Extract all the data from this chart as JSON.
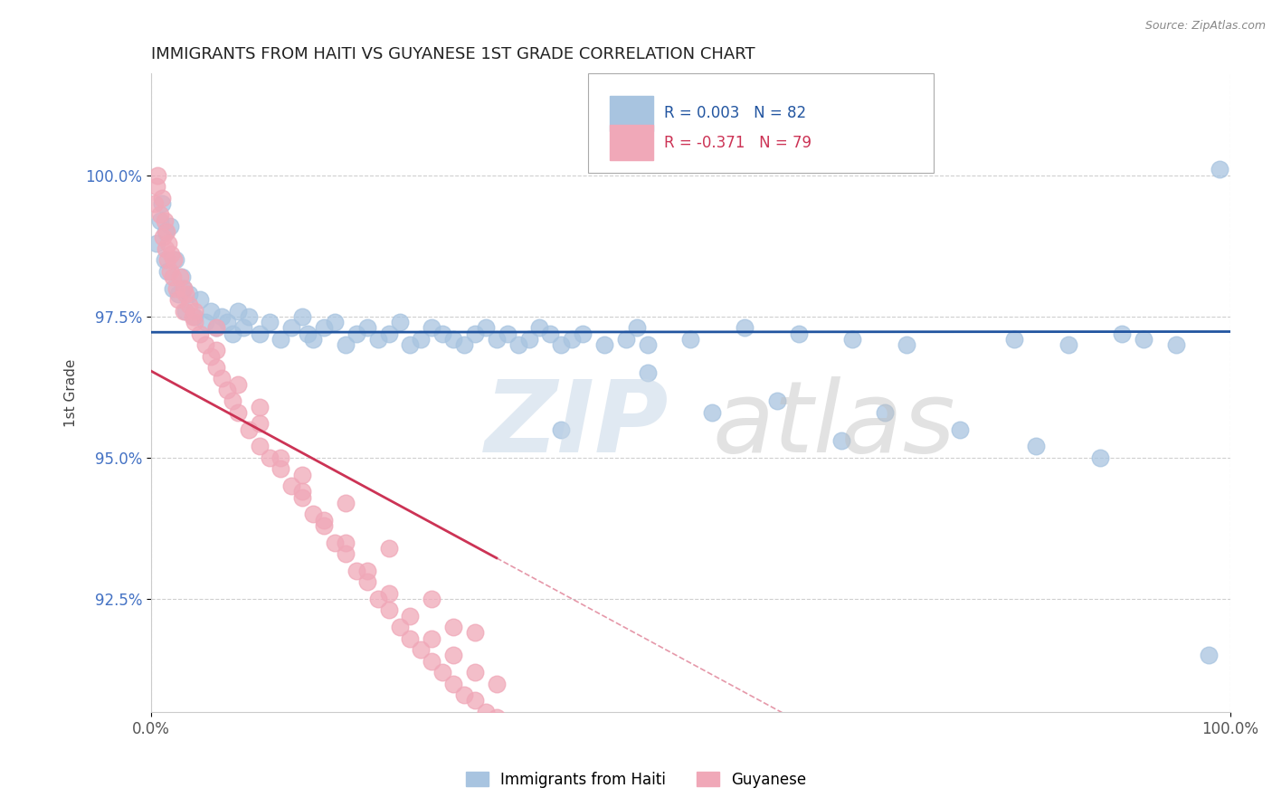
{
  "title": "IMMIGRANTS FROM HAITI VS GUYANESE 1ST GRADE CORRELATION CHART",
  "source_text": "Source: ZipAtlas.com",
  "ylabel": "1st Grade",
  "legend_label_blue": "Immigrants from Haiti",
  "legend_label_pink": "Guyanese",
  "r_blue": 0.003,
  "n_blue": 82,
  "r_pink": -0.371,
  "n_pink": 79,
  "color_blue": "#a8c4e0",
  "color_pink": "#f0a8b8",
  "line_color_blue": "#2255a0",
  "line_color_pink": "#cc3355",
  "xlim": [
    0.0,
    100.0
  ],
  "ylim": [
    90.5,
    101.8
  ],
  "yticks": [
    92.5,
    95.0,
    97.5,
    100.0
  ],
  "ytick_labels": [
    "92.5%",
    "95.0%",
    "97.5%",
    "100.0%"
  ],
  "xtick_labels": [
    "0.0%",
    "100.0%"
  ],
  "watermark_zip": "ZIP",
  "watermark_atlas": "atlas",
  "blue_x": [
    0.5,
    0.8,
    1.0,
    1.2,
    1.3,
    1.5,
    1.7,
    2.0,
    2.2,
    2.5,
    2.8,
    3.0,
    3.2,
    3.5,
    4.0,
    4.5,
    5.0,
    5.5,
    6.0,
    6.5,
    7.0,
    7.5,
    8.0,
    8.5,
    9.0,
    10.0,
    11.0,
    12.0,
    13.0,
    14.0,
    14.5,
    15.0,
    16.0,
    17.0,
    18.0,
    19.0,
    20.0,
    21.0,
    22.0,
    23.0,
    24.0,
    25.0,
    26.0,
    27.0,
    28.0,
    29.0,
    30.0,
    31.0,
    32.0,
    33.0,
    34.0,
    35.0,
    36.0,
    37.0,
    38.0,
    39.0,
    40.0,
    42.0,
    44.0,
    46.0,
    50.0,
    55.0,
    60.0,
    65.0,
    70.0,
    80.0,
    85.0,
    90.0,
    92.0,
    95.0,
    98.0,
    38.0,
    46.0,
    52.0,
    58.0,
    64.0,
    68.0,
    75.0,
    82.0,
    88.0,
    45.0,
    99.0
  ],
  "blue_y": [
    98.8,
    99.2,
    99.5,
    98.5,
    99.0,
    98.3,
    99.1,
    98.0,
    98.5,
    97.9,
    98.2,
    98.0,
    97.6,
    97.9,
    97.5,
    97.8,
    97.4,
    97.6,
    97.3,
    97.5,
    97.4,
    97.2,
    97.6,
    97.3,
    97.5,
    97.2,
    97.4,
    97.1,
    97.3,
    97.5,
    97.2,
    97.1,
    97.3,
    97.4,
    97.0,
    97.2,
    97.3,
    97.1,
    97.2,
    97.4,
    97.0,
    97.1,
    97.3,
    97.2,
    97.1,
    97.0,
    97.2,
    97.3,
    97.1,
    97.2,
    97.0,
    97.1,
    97.3,
    97.2,
    97.0,
    97.1,
    97.2,
    97.0,
    97.1,
    97.0,
    97.1,
    97.3,
    97.2,
    97.1,
    97.0,
    97.1,
    97.0,
    97.2,
    97.1,
    97.0,
    91.5,
    95.5,
    96.5,
    95.8,
    96.0,
    95.3,
    95.8,
    95.5,
    95.2,
    95.0,
    97.3,
    100.1
  ],
  "pink_x": [
    0.3,
    0.5,
    0.6,
    0.8,
    1.0,
    1.1,
    1.2,
    1.3,
    1.4,
    1.5,
    1.6,
    1.7,
    1.8,
    2.0,
    2.1,
    2.3,
    2.5,
    2.7,
    3.0,
    3.2,
    3.5,
    3.8,
    4.0,
    4.5,
    5.0,
    5.5,
    6.0,
    6.5,
    7.0,
    7.5,
    8.0,
    9.0,
    10.0,
    11.0,
    12.0,
    13.0,
    14.0,
    15.0,
    16.0,
    17.0,
    18.0,
    19.0,
    20.0,
    21.0,
    22.0,
    23.0,
    24.0,
    25.0,
    26.0,
    27.0,
    28.0,
    29.0,
    30.0,
    31.0,
    32.0,
    3.0,
    4.0,
    6.0,
    8.0,
    10.0,
    12.0,
    14.0,
    16.0,
    18.0,
    20.0,
    22.0,
    24.0,
    26.0,
    28.0,
    30.0,
    32.0,
    6.0,
    10.0,
    18.0,
    22.0,
    28.0,
    14.0,
    26.0,
    30.0
  ],
  "pink_y": [
    99.5,
    99.8,
    100.0,
    99.3,
    99.6,
    98.9,
    99.2,
    98.7,
    99.0,
    98.5,
    98.8,
    98.3,
    98.6,
    98.2,
    98.5,
    98.0,
    97.8,
    98.2,
    97.6,
    97.9,
    97.7,
    97.5,
    97.4,
    97.2,
    97.0,
    96.8,
    96.6,
    96.4,
    96.2,
    96.0,
    95.8,
    95.5,
    95.2,
    95.0,
    94.8,
    94.5,
    94.3,
    94.0,
    93.8,
    93.5,
    93.3,
    93.0,
    92.8,
    92.5,
    92.3,
    92.0,
    91.8,
    91.6,
    91.4,
    91.2,
    91.0,
    90.8,
    90.7,
    90.5,
    90.4,
    98.0,
    97.6,
    96.9,
    96.3,
    95.6,
    95.0,
    94.4,
    93.9,
    93.5,
    93.0,
    92.6,
    92.2,
    91.8,
    91.5,
    91.2,
    91.0,
    97.3,
    95.9,
    94.2,
    93.4,
    92.0,
    94.7,
    92.5,
    91.9
  ]
}
